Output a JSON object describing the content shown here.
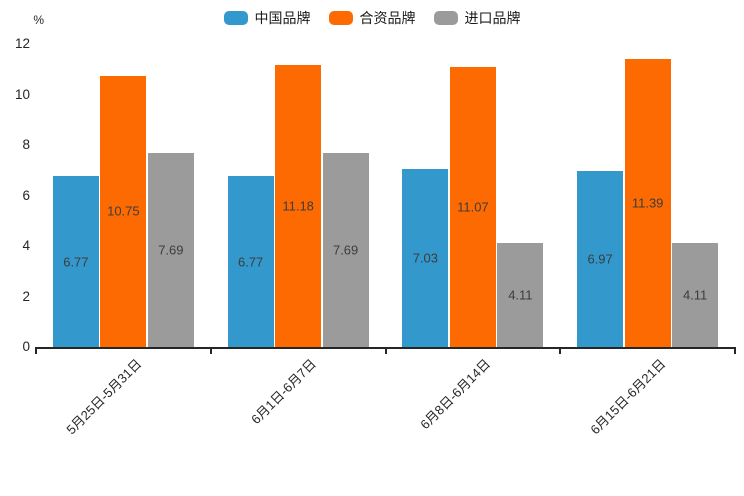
{
  "page": {
    "background": "#ffffff"
  },
  "legend": {
    "position": "top-center",
    "items": [
      {
        "label": "中国品牌",
        "color": "#3398cb"
      },
      {
        "label": "合资品牌",
        "color": "#fd6a02"
      },
      {
        "label": "进口品牌",
        "color": "#9b9b9b"
      }
    ]
  },
  "chart_data": {
    "type": "bar",
    "title": "",
    "unit_label": "%",
    "categories": [
      "5月25日-5月31日",
      "6月1日-6月7日",
      "6月8日-6月14日",
      "6月15日-6月21日"
    ],
    "series": [
      {
        "name": "中国品牌",
        "color": "#3398cb",
        "values": [
          6.77,
          6.77,
          7.03,
          6.97
        ]
      },
      {
        "name": "合资品牌",
        "color": "#fd6a02",
        "values": [
          10.75,
          11.18,
          11.07,
          11.39
        ]
      },
      {
        "name": "进口品牌",
        "color": "#9b9b9b",
        "values": [
          7.69,
          7.69,
          4.11,
          4.11
        ]
      }
    ],
    "ylim": [
      0,
      12
    ],
    "yticks": [
      0,
      2,
      4,
      6,
      8,
      10,
      12
    ],
    "grid": false,
    "legend_position": "top",
    "value_labels": "inside-center",
    "x_tick_rotation": 45,
    "axis_color": "#262626",
    "value_label_color": "#3d3d3d"
  }
}
